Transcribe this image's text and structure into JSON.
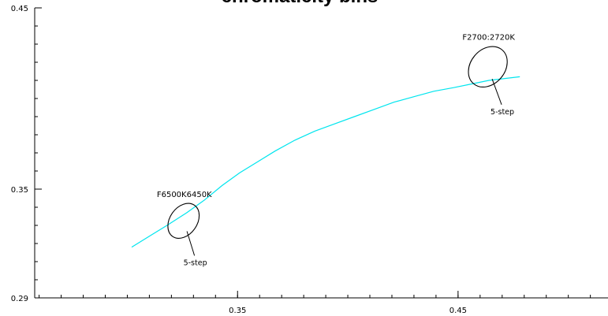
{
  "chart_data": {
    "type": "line",
    "title": "chromaticity bins",
    "xlabel": "",
    "ylabel": "",
    "xlim": [
      0.258,
      0.518
    ],
    "ylim": [
      0.29,
      0.45
    ],
    "x_ticks": [
      0.35,
      0.45
    ],
    "x_tick_labels": [
      "0.35",
      "0.45"
    ],
    "y_ticks": [
      0.29,
      0.35,
      0.45
    ],
    "y_tick_labels": [
      "0.29",
      "0.35",
      "0.45"
    ],
    "grid": false,
    "series": [
      {
        "color": "#00e5ee",
        "points": [
          [
            0.302,
            0.318
          ],
          [
            0.31,
            0.324
          ],
          [
            0.318,
            0.33
          ],
          [
            0.327,
            0.337
          ],
          [
            0.335,
            0.344
          ],
          [
            0.343,
            0.352
          ],
          [
            0.351,
            0.359
          ],
          [
            0.359,
            0.365
          ],
          [
            0.367,
            0.371
          ],
          [
            0.376,
            0.377
          ],
          [
            0.385,
            0.382
          ],
          [
            0.394,
            0.386
          ],
          [
            0.403,
            0.39
          ],
          [
            0.412,
            0.394
          ],
          [
            0.421,
            0.398
          ],
          [
            0.43,
            0.401
          ],
          [
            0.439,
            0.404
          ],
          [
            0.448,
            0.406
          ],
          [
            0.456,
            0.408
          ],
          [
            0.464,
            0.41
          ],
          [
            0.478,
            0.412
          ]
        ]
      }
    ],
    "ellipses": [
      {
        "name": "F6500K6450K",
        "label": "F6500K6450K",
        "step_label": "5-step",
        "center": [
          0.3255,
          0.3325
        ],
        "rx": 0.0062,
        "ry": 0.0105,
        "angle_deg": 35
      },
      {
        "name": "F2700:2720K",
        "label": "F2700:2720K",
        "step_label": "5-step",
        "center": [
          0.4635,
          0.4175
        ],
        "rx": 0.0078,
        "ry": 0.0122,
        "angle_deg": 40
      }
    ]
  }
}
